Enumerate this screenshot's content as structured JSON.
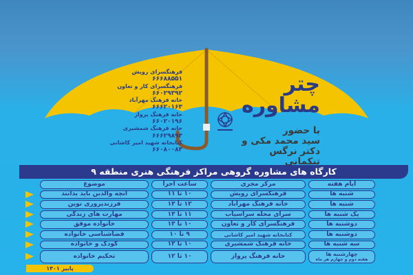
{
  "colors": {
    "background": "#26b2ea",
    "umbrella": "#f5c400",
    "navy": "#2b3a8c",
    "cell": "#56c3ef",
    "handle": "#8b5a2b"
  },
  "title": {
    "line1": "چتر",
    "line2": "مشاوره"
  },
  "guests": {
    "line1": "با حضور",
    "line2": "سید محمد مکی و",
    "line3": "دکتر نرگس تنکمانی"
  },
  "contacts": [
    {
      "name": "فرهنگسرای رویش",
      "phone": "۶۶۶۸۸۵۵۱"
    },
    {
      "name": "فرهنگسرای کار و تعاون",
      "phone": "۶۶۰۲۹۳۹۲"
    },
    {
      "name": "خانه فرهنگ مهرآباد",
      "phone": "۶۶۶۲۰۱۶۳"
    },
    {
      "name": "خانه فرهنگ پرواز",
      "phone": "۶۶۰۲۰۱۹۶"
    },
    {
      "name": "خانه فرهنگ شمشیری",
      "phone": "۶۶۶۲۹۸۹۳"
    },
    {
      "name": "کتابخانه شهید امیر کاشانی",
      "phone": "۶۶۰۸۰۰۸۳"
    }
  ],
  "banner": "کارگاه های مشاوره گروهی مراکز فرهنگی هنری منطقه ۹",
  "table": {
    "headers": {
      "day": "ایام هفته",
      "center": "مرکز مجری",
      "time": "ساعت اجرا",
      "topic": "موضوع"
    },
    "rows": [
      {
        "day": "شنبه ها",
        "center": "فرهنگسرای رویش",
        "time": "۱۰ تا ۱۱",
        "topic": "آنچه والدین باید بدانند"
      },
      {
        "day": "شنبه ها",
        "center": "خانه فرهنگ مهرآباد",
        "time": "۱۲ تا ۱۳",
        "topic": "فرزندپروری نوین"
      },
      {
        "day": "یک شنبه ها",
        "center": "سرای محله سرآسیاب",
        "time": "۱۱ تا ۱۳",
        "topic": "مهارت های زندگی"
      },
      {
        "day": "دوشنبه ها",
        "center": "فرهنگسرای کار و تعاون",
        "time": "۱۰ تا ۱۳",
        "topic": "خانواده موفق"
      },
      {
        "day": "دوشنبه ها",
        "center": "کتابخانه شهید امیر کاشانی",
        "time": "۹ تا ۱۰",
        "topic": "فضاشناسی خانواده"
      },
      {
        "day": "سه شنبه ها",
        "center": "خانه فرهنگ شمشیری",
        "time": "۱۰ تا ۱۲",
        "topic": "کودک و خانواده"
      },
      {
        "day": "چهارشنبه ها",
        "day_note": "هفته دوم و چهارم هر ماه",
        "center": "خانه فرهنگ پرواز",
        "time": "۱۰ تا ۱۲",
        "topic": "تحکیم خانواده"
      }
    ]
  },
  "footer": "پاییز ۱۴۰۱"
}
